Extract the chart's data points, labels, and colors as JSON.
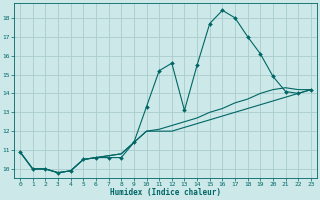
{
  "xlabel": "Humidex (Indice chaleur)",
  "background_color": "#cce8e8",
  "grid_color": "#aacccc",
  "line_color": "#006666",
  "xlim": [
    -0.5,
    23.5
  ],
  "ylim": [
    9.5,
    18.8
  ],
  "xticks": [
    0,
    1,
    2,
    3,
    4,
    5,
    6,
    7,
    8,
    9,
    10,
    11,
    12,
    13,
    14,
    15,
    16,
    17,
    18,
    19,
    20,
    21,
    22,
    23
  ],
  "yticks": [
    10,
    11,
    12,
    13,
    14,
    15,
    16,
    17,
    18
  ],
  "line1_x": [
    0,
    1,
    2,
    3,
    4,
    5,
    6,
    7,
    8,
    9,
    10,
    11,
    12,
    13,
    14,
    15,
    16,
    17,
    18,
    19,
    20,
    21,
    22,
    23
  ],
  "line1_y": [
    10.9,
    10.0,
    10.0,
    9.8,
    9.9,
    10.5,
    10.6,
    10.6,
    10.6,
    11.4,
    13.3,
    15.2,
    15.6,
    13.1,
    15.5,
    17.7,
    18.4,
    18.0,
    17.0,
    16.1,
    14.9,
    14.1,
    14.0,
    14.2
  ],
  "line2_x": [
    0,
    1,
    2,
    3,
    4,
    5,
    6,
    7,
    8,
    9,
    10,
    11,
    12,
    13,
    14,
    15,
    16,
    17,
    18,
    19,
    20,
    21,
    22,
    23
  ],
  "line2_y": [
    10.9,
    10.0,
    10.0,
    9.8,
    9.9,
    10.5,
    10.6,
    10.7,
    10.8,
    11.4,
    12.0,
    12.0,
    12.0,
    12.2,
    12.4,
    12.6,
    12.8,
    13.0,
    13.2,
    13.4,
    13.6,
    13.8,
    14.0,
    14.2
  ],
  "line3_x": [
    0,
    1,
    2,
    3,
    4,
    5,
    6,
    7,
    8,
    9,
    10,
    11,
    12,
    13,
    14,
    15,
    16,
    17,
    18,
    19,
    20,
    21,
    22,
    23
  ],
  "line3_y": [
    10.9,
    10.0,
    10.0,
    9.8,
    9.9,
    10.5,
    10.6,
    10.7,
    10.8,
    11.4,
    12.0,
    12.1,
    12.3,
    12.5,
    12.7,
    13.0,
    13.2,
    13.5,
    13.7,
    14.0,
    14.2,
    14.3,
    14.2,
    14.2
  ]
}
